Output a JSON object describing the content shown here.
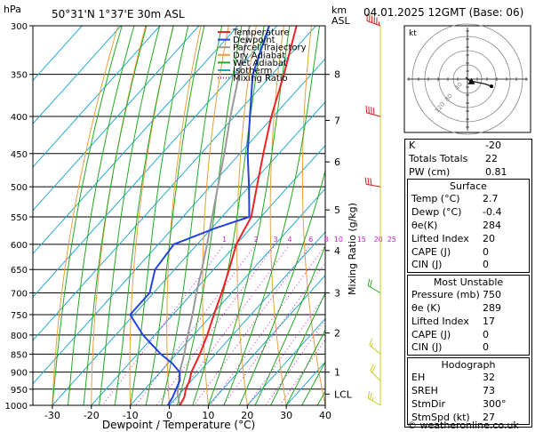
{
  "header": {
    "location": "50°31'N  1°37'E  30m  ASL",
    "hpa_label": "hPa",
    "km_label": "km",
    "asl_label": "ASL",
    "datetime": "04.01.2025  12GMT  (Base: 06)"
  },
  "chart_data": {
    "type": "skew-t",
    "xlabel": "Dewpoint / Temperature (°C)",
    "mixing_ratio_axis_label": "Mixing Ratio (g/kg)",
    "pressure_levels": [
      300,
      350,
      400,
      450,
      500,
      550,
      600,
      650,
      700,
      750,
      800,
      850,
      900,
      950,
      1000
    ],
    "temp_ticks": [
      -30,
      -20,
      -10,
      0,
      10,
      20,
      30,
      40
    ],
    "xlim": [
      -35,
      40
    ],
    "km_ticks": [
      {
        "label": "8",
        "p": 350
      },
      {
        "label": "7",
        "p": 405
      },
      {
        "label": "6",
        "p": 462
      },
      {
        "label": "5",
        "p": 538
      },
      {
        "label": "4",
        "p": 612
      },
      {
        "label": "3",
        "p": 700
      },
      {
        "label": "2",
        "p": 795
      },
      {
        "label": "1",
        "p": 900
      },
      {
        "label": "LCL",
        "p": 965
      }
    ],
    "mixing_ratio_values": [
      1,
      2,
      3,
      4,
      6,
      8,
      10,
      15,
      20,
      25
    ],
    "mixing_ratio_labels": [
      "1",
      "2",
      "3",
      "4",
      "6",
      "8",
      "10",
      "15",
      "20",
      "25"
    ],
    "legend": [
      {
        "label": "Temperature",
        "color": "#ee2222",
        "style": "solid"
      },
      {
        "label": "Dewpoint",
        "color": "#2244dd",
        "style": "solid"
      },
      {
        "label": "Parcel Trajectory",
        "color": "#999999",
        "style": "solid"
      },
      {
        "label": "Dry Adiabat",
        "color": "#e8a040",
        "style": "solid"
      },
      {
        "label": "Wet Adiabat",
        "color": "#22aa22",
        "style": "solid"
      },
      {
        "label": "Isotherm",
        "color": "#22aacc",
        "style": "solid"
      },
      {
        "label": "Mixing Ratio",
        "color": "#cc22cc",
        "style": "dotted"
      }
    ],
    "temperature_profile": [
      {
        "p": 1000,
        "t": 2.7
      },
      {
        "p": 975,
        "t": 2.0
      },
      {
        "p": 950,
        "t": 0.5
      },
      {
        "p": 925,
        "t": -0.5
      },
      {
        "p": 900,
        "t": -2.0
      },
      {
        "p": 850,
        "t": -4.0
      },
      {
        "p": 800,
        "t": -6.5
      },
      {
        "p": 750,
        "t": -9.5
      },
      {
        "p": 700,
        "t": -12.5
      },
      {
        "p": 650,
        "t": -16.0
      },
      {
        "p": 600,
        "t": -20.0
      },
      {
        "p": 550,
        "t": -22.5
      },
      {
        "p": 500,
        "t": -28.0
      },
      {
        "p": 450,
        "t": -34.0
      },
      {
        "p": 400,
        "t": -40.5
      },
      {
        "p": 350,
        "t": -47.0
      },
      {
        "p": 300,
        "t": -55.0
      }
    ],
    "dewpoint_profile": [
      {
        "p": 1000,
        "t": -0.4
      },
      {
        "p": 975,
        "t": -1.0
      },
      {
        "p": 950,
        "t": -2.0
      },
      {
        "p": 925,
        "t": -3.0
      },
      {
        "p": 900,
        "t": -5.0
      },
      {
        "p": 875,
        "t": -9.0
      },
      {
        "p": 850,
        "t": -14.0
      },
      {
        "p": 800,
        "t": -23.0
      },
      {
        "p": 750,
        "t": -31.0
      },
      {
        "p": 700,
        "t": -31.0
      },
      {
        "p": 650,
        "t": -35.0
      },
      {
        "p": 600,
        "t": -36.0
      },
      {
        "p": 570,
        "t": -29.0
      },
      {
        "p": 550,
        "t": -23.0
      },
      {
        "p": 500,
        "t": -30.0
      },
      {
        "p": 450,
        "t": -38.0
      },
      {
        "p": 400,
        "t": -46.0
      },
      {
        "p": 350,
        "t": -55.0
      },
      {
        "p": 300,
        "t": -62.0
      }
    ],
    "parcel_profile": [
      {
        "p": 1000,
        "t": 2.7
      },
      {
        "p": 965,
        "t": -0.5
      },
      {
        "p": 900,
        "t": -5.0
      },
      {
        "p": 850,
        "t": -8.0
      },
      {
        "p": 800,
        "t": -11.5
      },
      {
        "p": 750,
        "t": -15.0
      },
      {
        "p": 700,
        "t": -19.0
      },
      {
        "p": 650,
        "t": -23.0
      },
      {
        "p": 600,
        "t": -27.5
      },
      {
        "p": 550,
        "t": -32.5
      },
      {
        "p": 500,
        "t": -38.0
      },
      {
        "p": 450,
        "t": -44.0
      },
      {
        "p": 400,
        "t": -51.0
      },
      {
        "p": 350,
        "t": -58.5
      },
      {
        "p": 300,
        "t": -67.0
      }
    ],
    "wind_barbs": [
      {
        "p": 300,
        "dir": 290,
        "spd": 55,
        "color": "#cc2222"
      },
      {
        "p": 400,
        "dir": 285,
        "spd": 40,
        "color": "#cc2222"
      },
      {
        "p": 500,
        "dir": 280,
        "spd": 30,
        "color": "#cc2222"
      },
      {
        "p": 700,
        "dir": 300,
        "spd": 20,
        "color": "#22aa22"
      },
      {
        "p": 850,
        "dir": 310,
        "spd": 15,
        "color": "#cccc22"
      },
      {
        "p": 925,
        "dir": 315,
        "spd": 20,
        "color": "#cccc22"
      },
      {
        "p": 1000,
        "dir": 300,
        "spd": 25,
        "color": "#cccc22"
      }
    ]
  },
  "hodograph": {
    "unit_label": "kt",
    "ring_labels": [
      "40",
      "80",
      "120"
    ],
    "points": [
      {
        "u": -2,
        "v": 2
      },
      {
        "u": 3,
        "v": -2
      },
      {
        "u": 12,
        "v": -4
      },
      {
        "u": 22,
        "v": -6
      },
      {
        "u": 30,
        "v": -9
      }
    ],
    "storm_motion": {
      "u": 5,
      "v": -3
    }
  },
  "indices": [
    {
      "label": "K",
      "value": "-20"
    },
    {
      "label": "Totals Totals",
      "value": "22"
    },
    {
      "label": "PW (cm)",
      "value": "0.81"
    }
  ],
  "surface": {
    "title": "Surface",
    "rows": [
      {
        "label": "Temp (°C)",
        "value": "2.7"
      },
      {
        "label": "Dewp (°C)",
        "value": "-0.4"
      },
      {
        "label": "θe(K)",
        "value": "284"
      },
      {
        "label": "Lifted Index",
        "value": "20"
      },
      {
        "label": "CAPE (J)",
        "value": "0"
      },
      {
        "label": "CIN (J)",
        "value": "0"
      }
    ]
  },
  "most_unstable": {
    "title": "Most Unstable",
    "rows": [
      {
        "label": "Pressure (mb)",
        "value": "750"
      },
      {
        "label": "θe (K)",
        "value": "289"
      },
      {
        "label": "Lifted Index",
        "value": "17"
      },
      {
        "label": "CAPE (J)",
        "value": "0"
      },
      {
        "label": "CIN (J)",
        "value": "0"
      }
    ]
  },
  "hodo_table": {
    "title": "Hodograph",
    "rows": [
      {
        "label": "EH",
        "value": "32"
      },
      {
        "label": "SREH",
        "value": "73"
      },
      {
        "label": "StmDir",
        "value": "300°"
      },
      {
        "label": "StmSpd (kt)",
        "value": "27"
      }
    ]
  },
  "copyright": "© weatheronline.co.uk"
}
